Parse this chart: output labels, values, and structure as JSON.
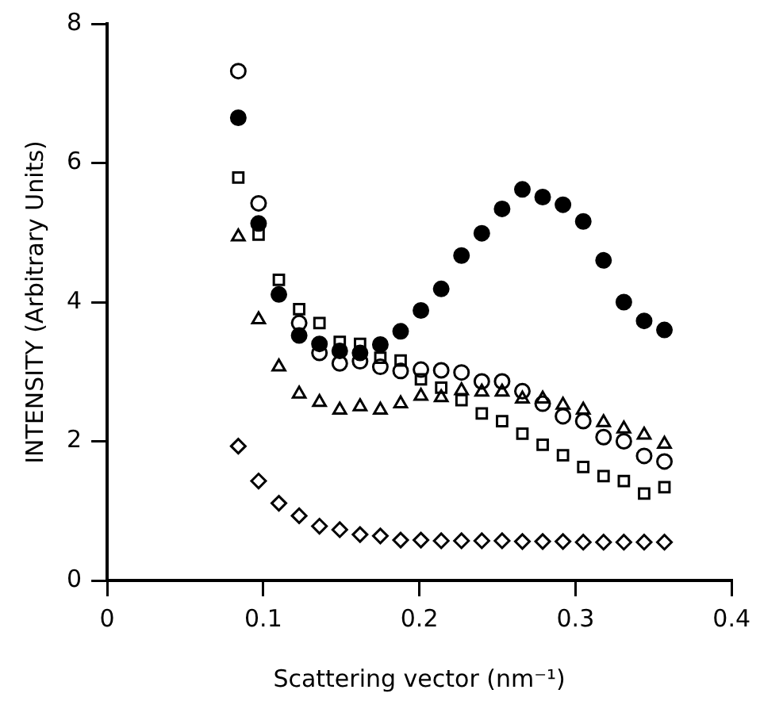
{
  "chart_data": {
    "type": "scatter",
    "xlabel": "Scattering vector (nm⁻¹)",
    "ylabel": "INTENSITY (Arbitrary Units)",
    "x": [
      0.084,
      0.097,
      0.11,
      0.123,
      0.136,
      0.149,
      0.162,
      0.175,
      0.188,
      0.201,
      0.214,
      0.227,
      0.24,
      0.253,
      0.266,
      0.279,
      0.292,
      0.305,
      0.318,
      0.331,
      0.344,
      0.357
    ],
    "xlim": [
      0,
      0.4
    ],
    "xticks": [
      0,
      0.1,
      0.2,
      0.3,
      0.4
    ],
    "ylim": [
      0,
      8
    ],
    "yticks": [
      0,
      2,
      4,
      6,
      8
    ],
    "grid": false,
    "legend": false,
    "series": [
      {
        "color": "#000000",
        "marker": "circle",
        "values": [
          6.65,
          5.13,
          4.11,
          3.52,
          3.4,
          3.3,
          3.27,
          3.39,
          3.58,
          3.88,
          4.19,
          4.67,
          4.99,
          5.34,
          5.62,
          5.51,
          5.4,
          5.16,
          4.6,
          4.0,
          3.73,
          3.6
        ]
      },
      {
        "color": "#000000",
        "marker": "circle",
        "values": [
          7.32,
          5.42,
          null,
          3.7,
          3.27,
          3.12,
          3.15,
          3.07,
          3.01,
          3.03,
          3.02,
          2.99,
          2.86,
          2.86,
          2.72,
          2.54,
          2.36,
          2.29,
          2.06,
          2.0,
          1.79,
          1.71
        ]
      },
      {
        "color": "#000000",
        "marker": "square",
        "values": [
          5.79,
          4.97,
          4.32,
          3.9,
          3.7,
          3.43,
          3.4,
          3.2,
          3.16,
          2.89,
          2.77,
          2.59,
          2.4,
          2.29,
          2.11,
          1.95,
          1.8,
          1.63,
          1.5,
          1.43,
          1.25,
          1.34
        ]
      },
      {
        "color": "#000000",
        "marker": "triangle",
        "values": [
          4.94,
          3.75,
          3.07,
          2.68,
          2.56,
          2.45,
          2.5,
          2.45,
          2.54,
          2.65,
          2.63,
          2.73,
          2.71,
          2.71,
          2.61,
          2.61,
          2.52,
          2.45,
          2.27,
          2.18,
          2.09,
          1.96
        ]
      },
      {
        "color": "#000000",
        "marker": "diamond",
        "values": [
          1.93,
          1.43,
          1.11,
          0.93,
          0.78,
          0.73,
          0.66,
          0.64,
          0.58,
          0.58,
          0.57,
          0.57,
          0.57,
          0.57,
          0.56,
          0.56,
          0.56,
          0.55,
          0.55,
          0.55,
          0.55,
          0.55
        ]
      }
    ]
  }
}
